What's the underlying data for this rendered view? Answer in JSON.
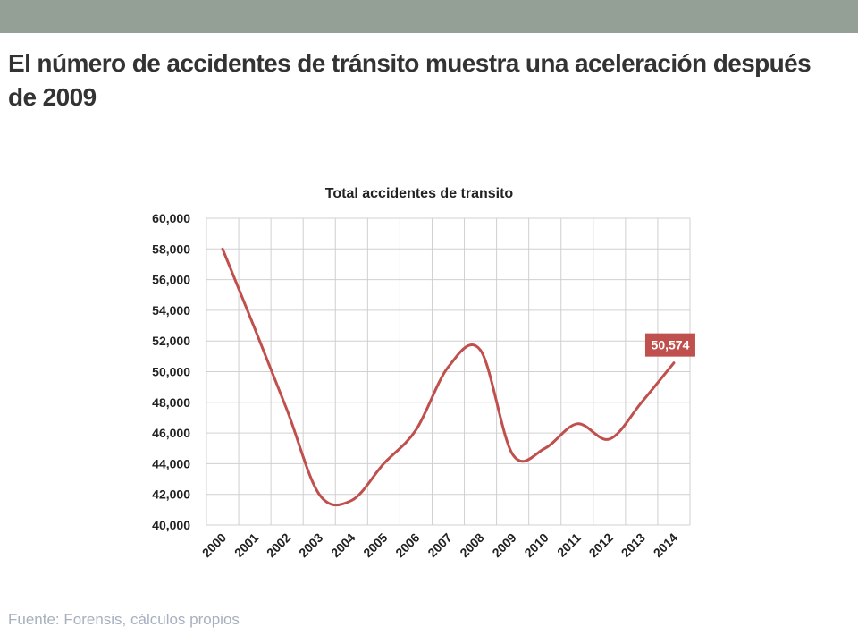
{
  "slide": {
    "title": "El número de accidentes de tránsito  muestra una aceleración después de 2009",
    "source": "Fuente: Forensis, cálculos propios"
  },
  "colors": {
    "top_bar": "#94a095",
    "line": "#c0504d",
    "label_bg": "#c0504d",
    "grid": "#d0d0d0",
    "text": "#333333",
    "source_text": "#a7b0bf"
  },
  "chart_data": {
    "type": "line",
    "title": "Total accidentes de transito",
    "xlabel": "",
    "ylabel": "",
    "categories": [
      "2000",
      "2001",
      "2002",
      "2003",
      "2004",
      "2005",
      "2006",
      "2007",
      "2008",
      "2009",
      "2010",
      "2011",
      "2012",
      "2013",
      "2014"
    ],
    "series": [
      {
        "values": [
          58000,
          52800,
          47500,
          42000,
          41600,
          44000,
          46200,
          50300,
          51400,
          44600,
          45000,
          46600,
          45600,
          48000,
          50574
        ]
      }
    ],
    "ylim": [
      40000,
      60000
    ],
    "yticks": [
      40000,
      42000,
      44000,
      46000,
      48000,
      50000,
      52000,
      54000,
      56000,
      58000,
      60000
    ],
    "ytick_labels": [
      "40,000",
      "42,000",
      "44,000",
      "46,000",
      "48,000",
      "50,000",
      "52,000",
      "54,000",
      "56,000",
      "58,000",
      "60,000"
    ],
    "data_labels": [
      {
        "category": "2014",
        "text": "50,574"
      }
    ],
    "grid": true,
    "legend": "none",
    "smooth": true
  }
}
